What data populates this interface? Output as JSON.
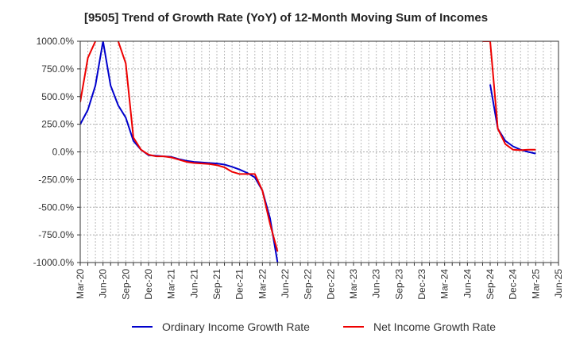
{
  "chart_data": {
    "type": "line",
    "title": "[9505]  Trend of Growth Rate (YoY) of 12-Month Moving Sum of Incomes",
    "xlabel": "",
    "ylabel": "",
    "ylim": [
      -1000,
      1000
    ],
    "yticks": [
      1000,
      750,
      500,
      250,
      0,
      -250,
      -500,
      -750,
      -1000
    ],
    "ytick_labels": [
      "1000.0%",
      "750.0%",
      "500.0%",
      "250.0%",
      "0.0%",
      "-250.0%",
      "-500.0%",
      "-750.0%",
      "-1000.0%"
    ],
    "x": [
      "Mar-20",
      "Apr-20",
      "May-20",
      "Jun-20",
      "Jul-20",
      "Aug-20",
      "Sep-20",
      "Oct-20",
      "Nov-20",
      "Dec-20",
      "Jan-21",
      "Feb-21",
      "Mar-21",
      "Apr-21",
      "May-21",
      "Jun-21",
      "Jul-21",
      "Aug-21",
      "Sep-21",
      "Oct-21",
      "Nov-21",
      "Dec-21",
      "Jan-22",
      "Feb-22",
      "Mar-22",
      "Apr-22",
      "May-22",
      "Jun-22",
      "Jul-22",
      "Aug-22",
      "Sep-22",
      "Oct-22",
      "Nov-22",
      "Dec-22",
      "Jan-23",
      "Feb-23",
      "Mar-23",
      "Apr-23",
      "May-23",
      "Jun-23",
      "Jul-23",
      "Aug-23",
      "Sep-23",
      "Oct-23",
      "Nov-23",
      "Dec-23",
      "Jan-24",
      "Feb-24",
      "Mar-24",
      "Apr-24",
      "May-24",
      "Jun-24",
      "Jul-24",
      "Aug-24",
      "Sep-24",
      "Oct-24",
      "Nov-24",
      "Dec-24",
      "Jan-25",
      "Feb-25",
      "Mar-25",
      "Apr-25",
      "May-25",
      "Jun-25"
    ],
    "xtick_labels": [
      "Mar-20",
      "Jun-20",
      "Sep-20",
      "Dec-20",
      "Mar-21",
      "Jun-21",
      "Sep-21",
      "Dec-21",
      "Mar-22",
      "Jun-22",
      "Sep-22",
      "Dec-22",
      "Mar-23",
      "Jun-23",
      "Sep-23",
      "Dec-23",
      "Mar-24",
      "Jun-24",
      "Sep-24",
      "Dec-24",
      "Mar-25",
      "Jun-25"
    ],
    "grid": true,
    "legend_position": "bottom",
    "series": [
      {
        "name": "Ordinary Income Growth Rate",
        "color": "#0000cc",
        "values": [
          250,
          380,
          600,
          1000,
          600,
          420,
          310,
          100,
          20,
          -30,
          -35,
          -40,
          -45,
          -65,
          -80,
          -90,
          -95,
          -100,
          -105,
          -115,
          -135,
          -160,
          -190,
          -230,
          -350,
          -600,
          -1000,
          null,
          null,
          null,
          null,
          null,
          null,
          null,
          null,
          null,
          null,
          null,
          null,
          null,
          null,
          null,
          null,
          null,
          null,
          null,
          null,
          null,
          null,
          null,
          null,
          null,
          null,
          null,
          610,
          210,
          100,
          50,
          20,
          0,
          -15,
          null,
          null,
          null
        ]
      },
      {
        "name": "Net Income Growth Rate",
        "color": "#ee0000",
        "values": [
          450,
          850,
          1000,
          null,
          null,
          1000,
          800,
          130,
          20,
          -25,
          -40,
          -40,
          -50,
          -70,
          -90,
          -100,
          -105,
          -110,
          -120,
          -140,
          -180,
          -200,
          -200,
          -200,
          -350,
          -650,
          -900,
          null,
          null,
          null,
          null,
          null,
          null,
          null,
          null,
          null,
          null,
          null,
          null,
          null,
          null,
          null,
          null,
          null,
          null,
          null,
          null,
          null,
          null,
          null,
          null,
          null,
          null,
          1000,
          1000,
          210,
          70,
          20,
          15,
          20,
          20,
          null,
          null,
          null
        ]
      }
    ]
  }
}
